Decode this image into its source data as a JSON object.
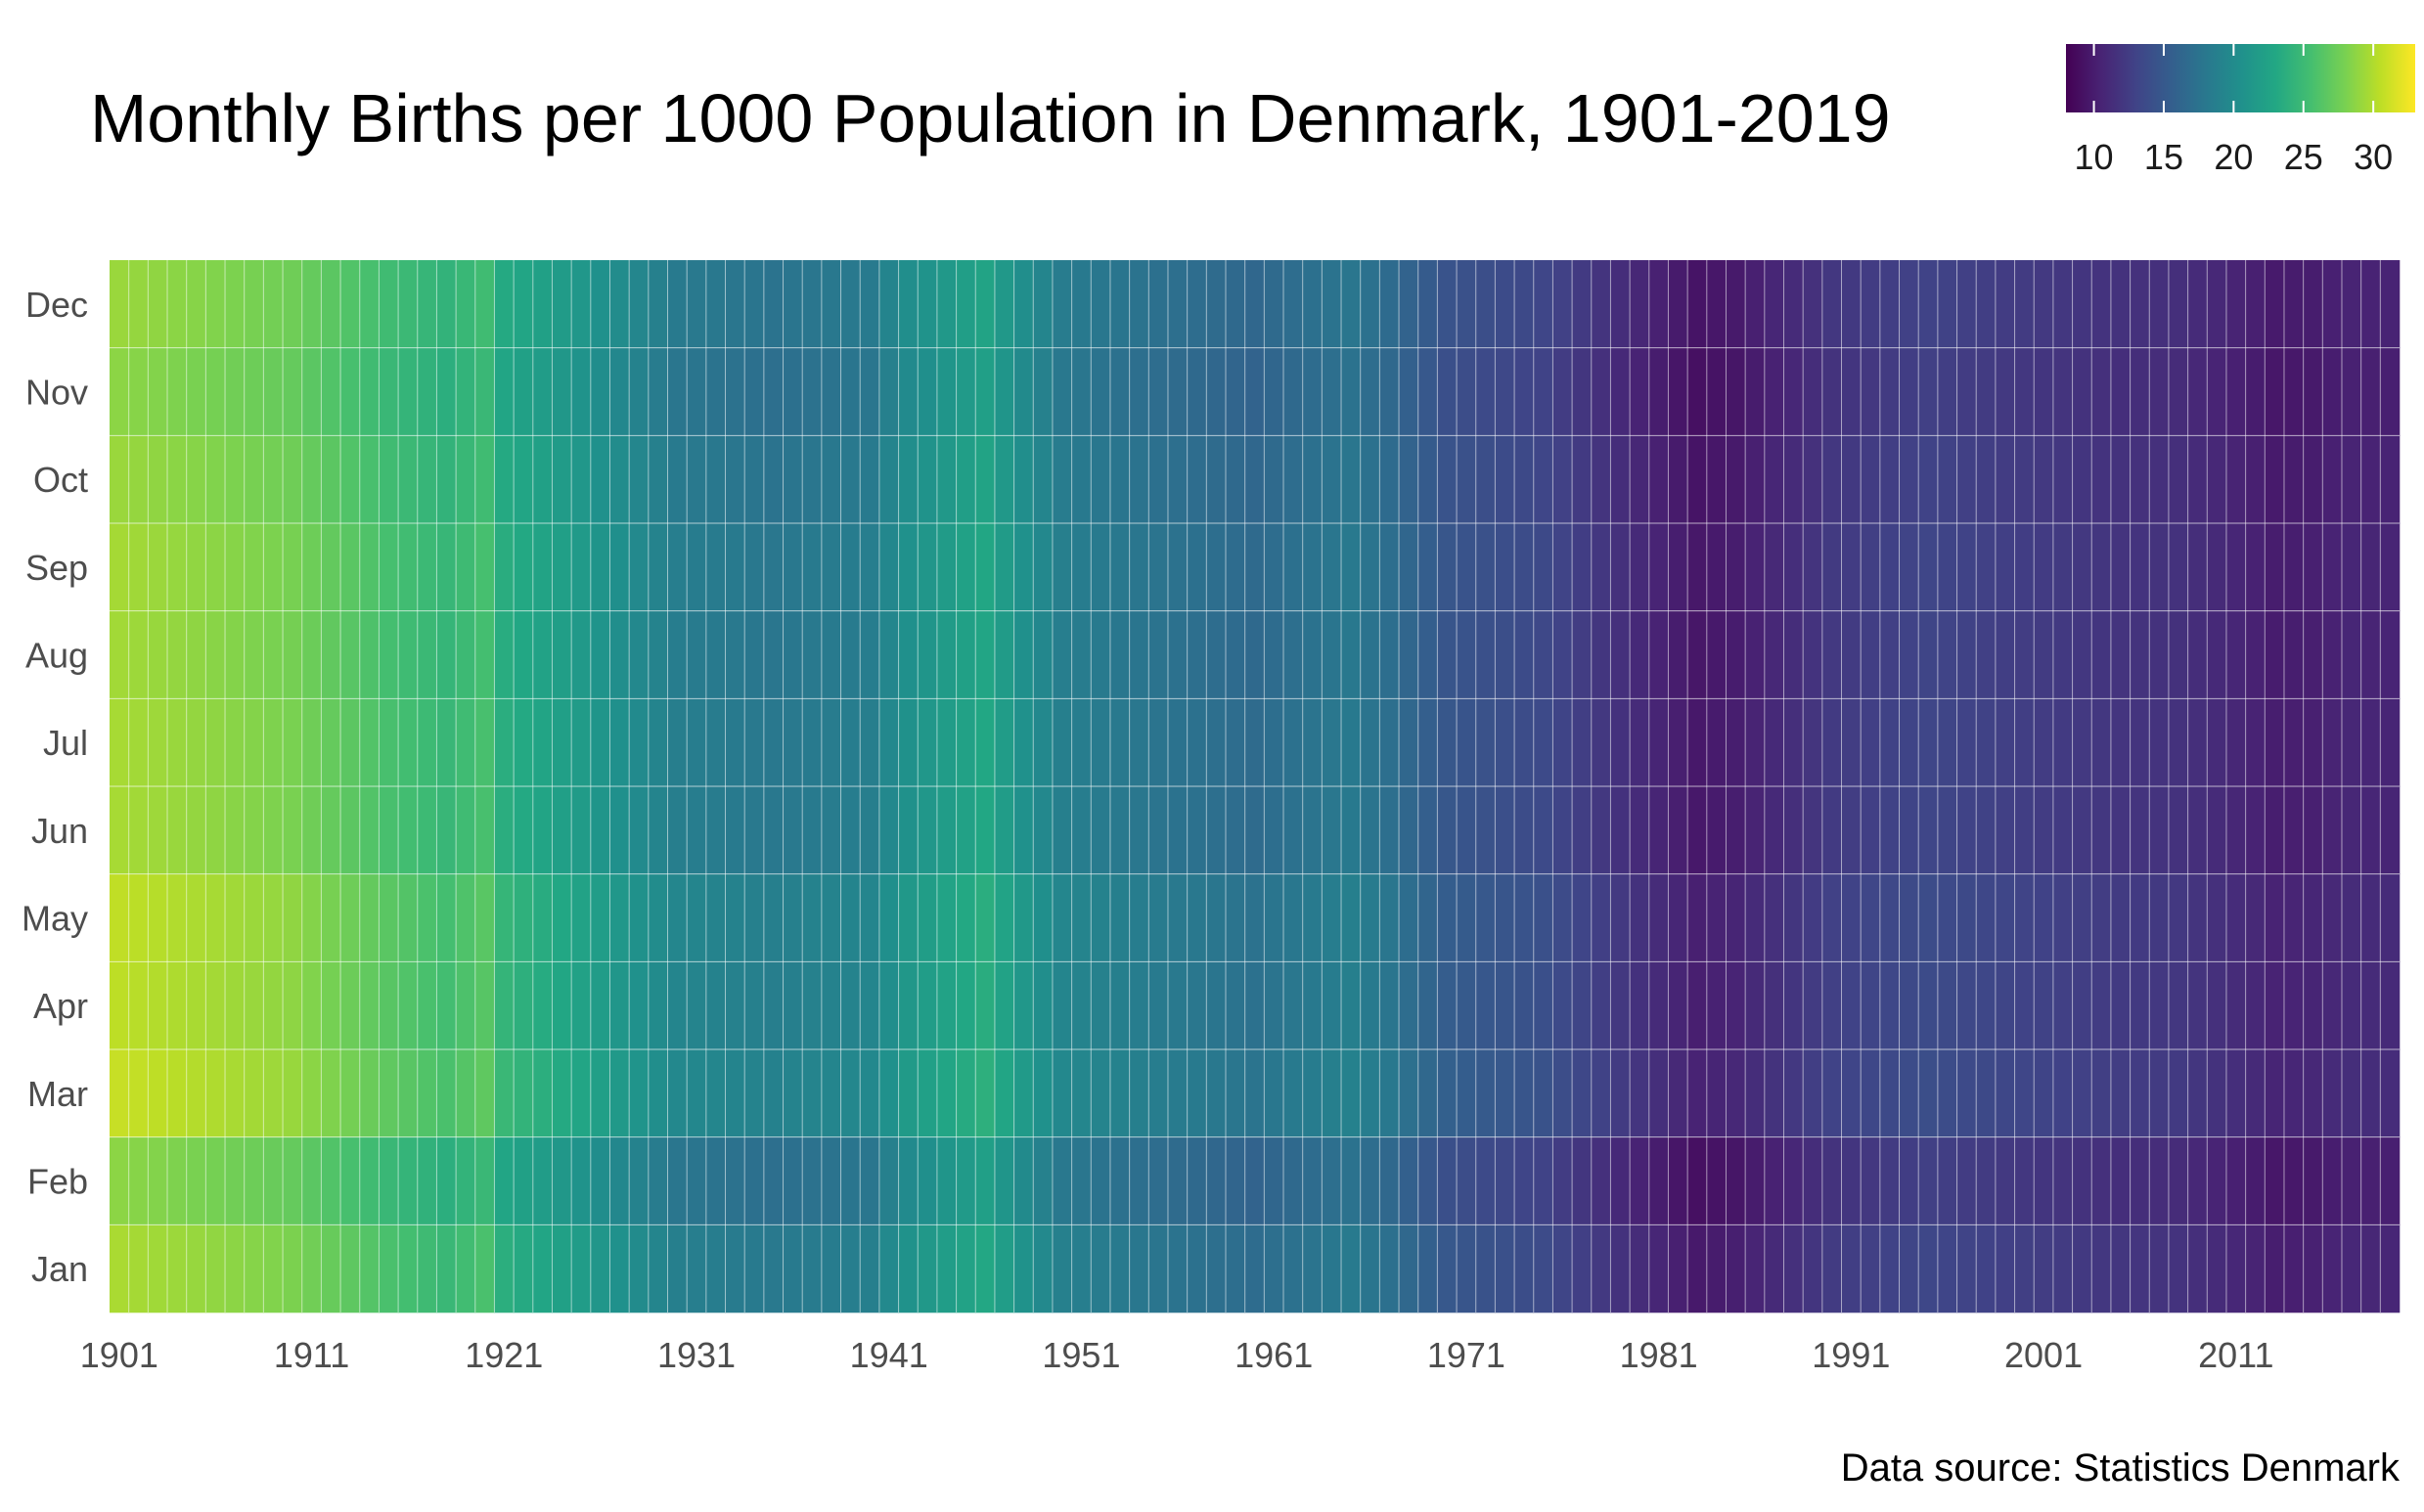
{
  "chart_data": {
    "type": "heatmap",
    "title": "Monthly Births per 1000 Population in Denmark, 1901-2019",
    "caption": "Data source: Statistics Denmark",
    "x_start": 1901,
    "x_end": 2019,
    "x_ticks": [
      1901,
      1911,
      1921,
      1931,
      1941,
      1951,
      1961,
      1971,
      1981,
      1991,
      2001,
      2011
    ],
    "x_tick_labels": [
      "1901",
      "1911",
      "1921",
      "1931",
      "1941",
      "1951",
      "1961",
      "1971",
      "1981",
      "1991",
      "2001",
      "2011"
    ],
    "months": [
      "Jan",
      "Feb",
      "Mar",
      "Apr",
      "May",
      "Jun",
      "Jul",
      "Aug",
      "Sep",
      "Oct",
      "Nov",
      "Dec"
    ],
    "month_labels_top_to_bottom": [
      "Dec",
      "Nov",
      "Oct",
      "Sep",
      "Aug",
      "Jul",
      "Jun",
      "May",
      "Apr",
      "Mar",
      "Feb",
      "Jan"
    ],
    "colorscale": "viridis",
    "color_range": [
      8,
      33
    ],
    "legend": {
      "position": "top-right",
      "ticks": [
        10,
        15,
        20,
        25,
        30
      ],
      "tick_labels": [
        "10",
        "15",
        "20",
        "25",
        "30"
      ]
    },
    "grid": true,
    "annual_base_anchors": [
      [
        1901,
        29.5
      ],
      [
        1905,
        28.8
      ],
      [
        1910,
        27.8
      ],
      [
        1915,
        25.5
      ],
      [
        1918,
        24.5
      ],
      [
        1920,
        25.5
      ],
      [
        1921,
        23.5
      ],
      [
        1925,
        21.5
      ],
      [
        1930,
        18.5
      ],
      [
        1935,
        17.8
      ],
      [
        1940,
        18.5
      ],
      [
        1942,
        20.5
      ],
      [
        1946,
        22.8
      ],
      [
        1948,
        20.5
      ],
      [
        1950,
        18.6
      ],
      [
        1955,
        17.5
      ],
      [
        1960,
        16.6
      ],
      [
        1965,
        18.0
      ],
      [
        1967,
        17.0
      ],
      [
        1970,
        14.7
      ],
      [
        1975,
        13.5
      ],
      [
        1980,
        11.0
      ],
      [
        1983,
        9.6
      ],
      [
        1985,
        10.0
      ],
      [
        1990,
        12.2
      ],
      [
        1995,
        13.2
      ],
      [
        2000,
        12.5
      ],
      [
        2005,
        11.8
      ],
      [
        2008,
        11.6
      ],
      [
        2012,
        10.4
      ],
      [
        2013,
        10.0
      ],
      [
        2015,
        10.2
      ],
      [
        2017,
        10.7
      ],
      [
        2019,
        10.6
      ]
    ],
    "seasonal_offsets_jan_to_dec": [
      0.3,
      -0.8,
      1.4,
      1.0,
      1.1,
      0.2,
      0.2,
      0.0,
      0.1,
      -0.3,
      -0.8,
      -0.3
    ]
  }
}
